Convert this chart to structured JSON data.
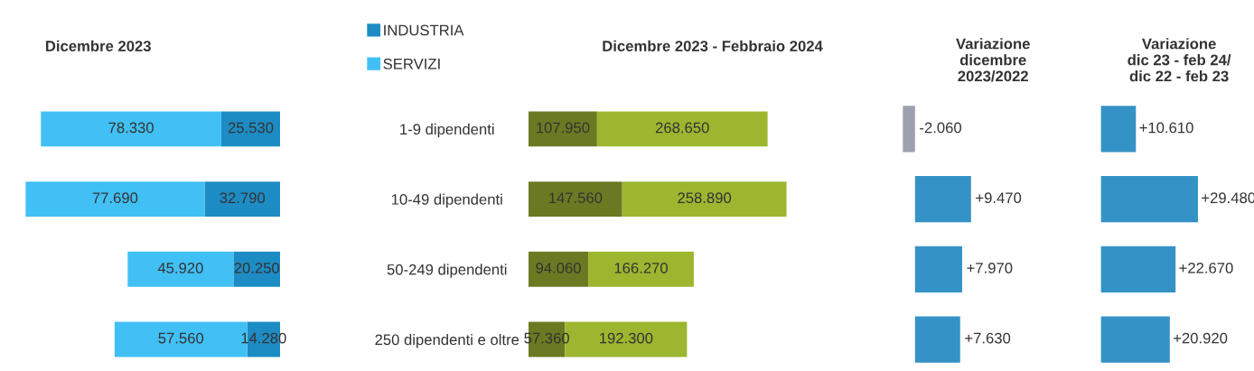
{
  "chart_data": [
    {
      "type": "bar",
      "orientation": "horizontal",
      "stacked": true,
      "title": "Dicembre 2023",
      "categories": [
        "1-9 dipendenti",
        "10-49 dipendenti",
        "50-249 dipendenti",
        "250 dipendenti e oltre"
      ],
      "tick_labels": "y",
      "legend": "top right",
      "series": [
        {
          "name": "INDUSTRIA",
          "color": "#1d8cc4",
          "values": [
            25530,
            32790,
            20250,
            14280
          ],
          "value_labels": [
            "25.530",
            "32.790",
            "20.250",
            "14.280"
          ]
        },
        {
          "name": "SERVIZI",
          "color": "#41c0f5",
          "values": [
            78330,
            77690,
            45920,
            57560
          ],
          "value_labels": [
            "78.330",
            "77.690",
            "45.920",
            "57.560"
          ]
        }
      ]
    },
    {
      "type": "bar",
      "orientation": "horizontal",
      "stacked": true,
      "title": "Dicembre 2023 - Febbraio 2024",
      "categories": [
        null,
        null,
        null,
        null
      ],
      "series": [
        {
          "color": "#6b7a22",
          "values": [
            107950,
            147560,
            94060,
            57360
          ],
          "value_labels": [
            "107.950",
            "147.560",
            "94.060",
            "57.360"
          ]
        },
        {
          "color": "#9db630",
          "values": [
            268650,
            258890,
            166270,
            192300
          ],
          "value_labels": [
            "268.650",
            "258.890",
            "166.270",
            "192.300"
          ]
        }
      ]
    },
    {
      "type": "bar",
      "orientation": "horizontal",
      "title": "Variazione\ndicembre\n2023/2022",
      "categories": [
        null,
        null,
        null,
        null
      ],
      "values": [
        -2060,
        9470,
        7970,
        7630
      ],
      "colors": [
        "#9ca1ae",
        "#3592c6",
        "#3592c6",
        "#3592c6"
      ],
      "value_labels": [
        "-2.060",
        "+9.470",
        "+7.970",
        "+7.630"
      ]
    },
    {
      "type": "bar",
      "orientation": "horizontal",
      "title": "Variazione\ndic 23 - feb 24/\ndic 22 - feb 23",
      "categories": [
        null,
        null,
        null,
        null
      ],
      "values": [
        10610,
        29480,
        22670,
        20920
      ],
      "colors": [
        "#3592c6",
        "#3592c6",
        "#3592c6",
        "#3592c6"
      ],
      "value_labels": [
        "+10.610",
        "+29.480",
        "+22.670",
        "+20.920"
      ]
    }
  ]
}
